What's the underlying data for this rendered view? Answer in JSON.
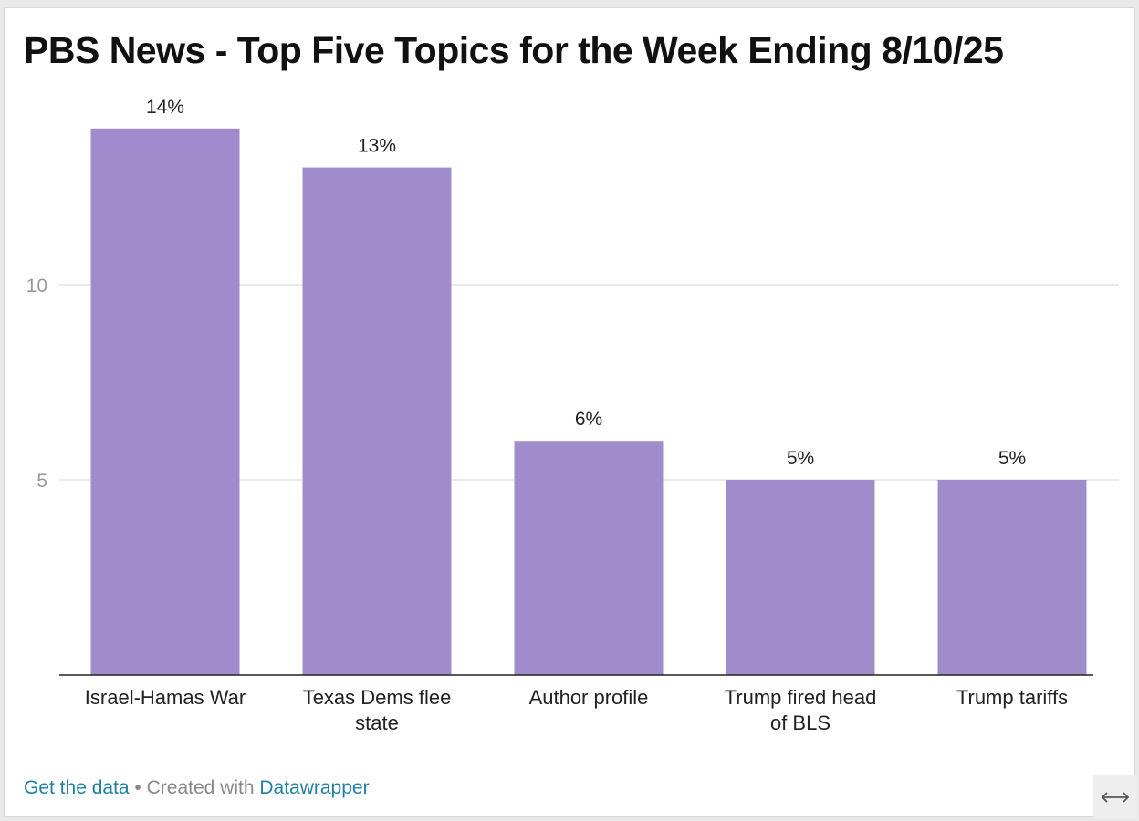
{
  "chart_data": {
    "type": "bar",
    "title": "PBS News - Top Five Topics for the Week Ending 8/10/25",
    "categories": [
      "Israel-Hamas War",
      "Texas Dems flee state",
      "Author profile",
      "Trump fired head of BLS",
      "Trump tariffs"
    ],
    "category_lines": [
      [
        "Israel-Hamas War"
      ],
      [
        "Texas Dems flee",
        "state"
      ],
      [
        "Author profile"
      ],
      [
        "Trump fired head",
        "of BLS"
      ],
      [
        "Trump tariffs"
      ]
    ],
    "values": [
      14,
      13,
      6,
      5,
      5
    ],
    "value_labels": [
      "14%",
      "13%",
      "6%",
      "5%",
      "5%"
    ],
    "y_ticks": [
      5,
      10
    ],
    "ylim": [
      0,
      14
    ],
    "xlabel": "",
    "ylabel": "",
    "grid": true,
    "bar_color": "#a08ccc"
  },
  "footer": {
    "get_data": "Get the data",
    "separator": " • Created with ",
    "tool": "Datawrapper"
  },
  "icons": {
    "expand": "expand-horizontal-icon"
  }
}
